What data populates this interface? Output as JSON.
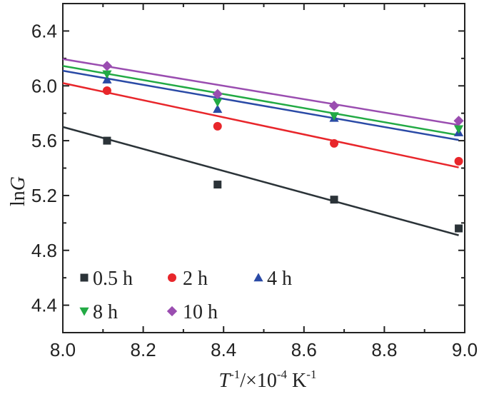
{
  "chart_data": {
    "type": "scatter",
    "title": "",
    "xlabel": {
      "main": "T",
      "main_sup": "-1",
      "rest": "/×10",
      "rest_sup": "-4",
      "unit": " K",
      "unit_sup": "-1"
    },
    "ylabel": {
      "prefix": "ln",
      "italic": "G"
    },
    "xlim": [
      8.0,
      9.0
    ],
    "ylim": [
      4.2,
      6.6
    ],
    "xticks": [
      "8.0",
      "8.2",
      "8.4",
      "8.6",
      "8.8",
      "9.0"
    ],
    "xtick_values": [
      8.0,
      8.2,
      8.4,
      8.6,
      8.8,
      9.0
    ],
    "yticks": [
      "4.4",
      "4.8",
      "5.2",
      "5.6",
      "6.0",
      "6.4"
    ],
    "ytick_values": [
      4.4,
      4.8,
      5.2,
      5.6,
      6.0,
      6.4
    ],
    "grid": false,
    "legend_position": "bottom-left",
    "series": [
      {
        "name": "0.5 h",
        "marker": "square",
        "color": "#2b3338",
        "x": [
          8.11,
          8.385,
          8.675,
          8.985
        ],
        "y": [
          5.6,
          5.28,
          5.17,
          4.96
        ],
        "fit": [
          [
            8.0,
            5.7
          ],
          [
            8.985,
            4.91
          ]
        ]
      },
      {
        "name": "2 h",
        "marker": "circle",
        "color": "#e8262b",
        "x": [
          8.11,
          8.385,
          8.675,
          8.985
        ],
        "y": [
          5.965,
          5.705,
          5.58,
          5.45
        ],
        "fit": [
          [
            8.0,
            6.02
          ],
          [
            8.985,
            5.405
          ]
        ]
      },
      {
        "name": "4 h",
        "marker": "triangle-up",
        "color": "#2a4aa6",
        "x": [
          8.11,
          8.385,
          8.675,
          8.985
        ],
        "y": [
          6.045,
          5.83,
          5.765,
          5.66
        ],
        "fit": [
          [
            8.0,
            6.11
          ],
          [
            8.985,
            5.605
          ]
        ]
      },
      {
        "name": "8 h",
        "marker": "triangle-down",
        "color": "#22aa44",
        "x": [
          8.11,
          8.385,
          8.675,
          8.985
        ],
        "y": [
          6.085,
          5.88,
          5.78,
          5.685
        ],
        "fit": [
          [
            8.0,
            6.145
          ],
          [
            8.985,
            5.64
          ]
        ]
      },
      {
        "name": "10 h",
        "marker": "diamond",
        "color": "#9a4db0",
        "x": [
          8.11,
          8.385,
          8.675,
          8.985
        ],
        "y": [
          6.145,
          5.94,
          5.855,
          5.745
        ],
        "fit": [
          [
            8.0,
            6.195
          ],
          [
            8.985,
            5.715
          ]
        ]
      }
    ],
    "colors": {
      "axis": "#222222"
    }
  }
}
